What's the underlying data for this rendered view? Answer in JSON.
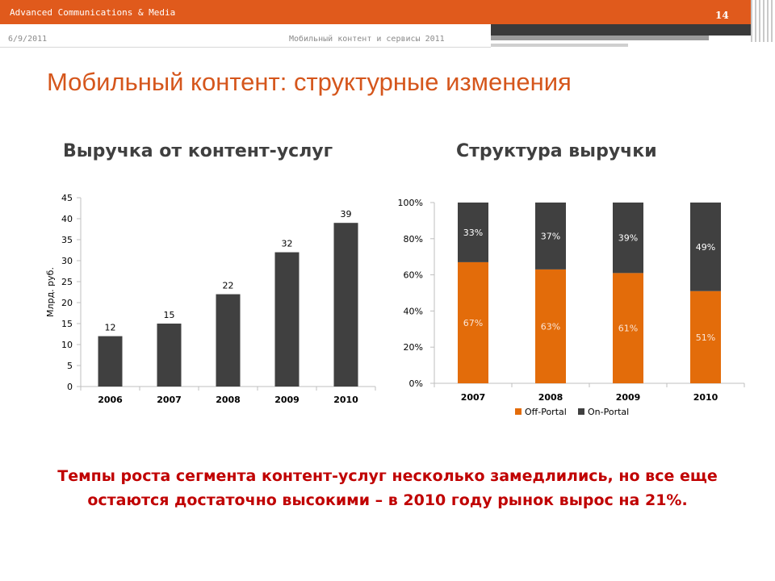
{
  "header": {
    "company": "Advanced Communications & Media",
    "page_number": "14",
    "date": "6/9/2011",
    "deck_title": "Мобильный контент и сервисы 2011",
    "brand_color": "#e05a1c"
  },
  "slide": {
    "title": "Мобильный контент: структурные изменения",
    "conclusion_line1": "Темпы роста сегмента контент-услуг несколько замедлились, но все еще",
    "conclusion_line2": "остаются достаточно высокими – в 2010 году рынок вырос на 21%."
  },
  "chart_data": [
    {
      "type": "bar",
      "title": "Выручка от контент-услуг",
      "ylabel": "Млрд. руб.",
      "xlabel": "",
      "categories": [
        "2006",
        "2007",
        "2008",
        "2009",
        "2010"
      ],
      "values": [
        12,
        15,
        22,
        32,
        39
      ],
      "value_labels": [
        "12",
        "15",
        "22",
        "32",
        "39"
      ],
      "yticks": [
        "0",
        "5",
        "10",
        "15",
        "20",
        "25",
        "30",
        "35",
        "40",
        "45"
      ],
      "ylim": [
        0,
        45
      ],
      "bar_color": "#404040",
      "grid": false,
      "legend": "none"
    },
    {
      "type": "bar",
      "stacked": true,
      "title": "Структура выручки",
      "categories": [
        "2007",
        "2008",
        "2009",
        "2010"
      ],
      "yticks": [
        "0%",
        "20%",
        "40%",
        "60%",
        "80%",
        "100%"
      ],
      "ylim": [
        0,
        100
      ],
      "series": [
        {
          "name": "Off-Portal",
          "color": "#e36c0a",
          "values": [
            67,
            63,
            61,
            51
          ],
          "labels": [
            "67%",
            "63%",
            "61%",
            "51%"
          ]
        },
        {
          "name": "On-Portal",
          "color": "#404040",
          "values": [
            33,
            37,
            39,
            49
          ],
          "labels": [
            "33%",
            "37%",
            "39%",
            "49%"
          ]
        }
      ],
      "legend": "bottom-center",
      "grid": false
    }
  ]
}
